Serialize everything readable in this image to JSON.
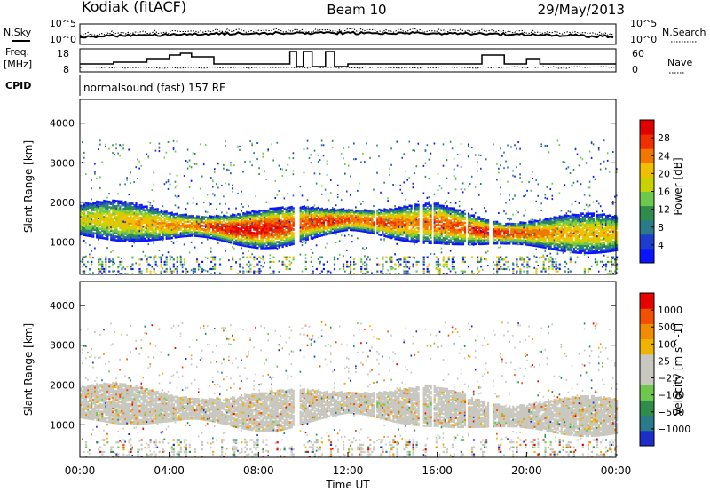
{
  "header": {
    "station": "Kodiak (fitACF)",
    "beam": "Beam 10",
    "date": "29/May/2013"
  },
  "labels": {
    "nsky": "N.Sky",
    "nsearch": "N.Search",
    "freq_line1": "Freq.",
    "freq_line2": "[MHz]",
    "nave": "Nave",
    "cpid": "CPID",
    "cpid_value": "normalsound (fast) 157 RF",
    "sky_tick_top": "10^5",
    "sky_tick_bottom": "10^0",
    "search_tick_top": "10^5",
    "search_tick_bottom": "10^0",
    "freq_tick_top": "18",
    "freq_tick_bottom": "8",
    "nave_tick_top": "60",
    "nave_tick_bottom": "0"
  },
  "colors": {
    "power": [
      "#0a14ff",
      "#1e3ccd",
      "#2a7a8a",
      "#2f8c4a",
      "#6ec84e",
      "#c8d200",
      "#f0c000",
      "#f07800",
      "#f03000",
      "#e00000"
    ],
    "velocity": [
      "#e60000",
      "#f05000",
      "#f08c00",
      "#f0b400",
      "#c8c8c0",
      "#c8c8c0",
      "#6ec84e",
      "#2f8c4a",
      "#2a7a8a",
      "#1e2cc8"
    ]
  },
  "chart_data": [
    {
      "type": "heatmap",
      "name": "power",
      "xlabel": "",
      "ylabel": "Slant Range [km]",
      "xlim": [
        0,
        24
      ],
      "ylim": [
        180,
        4600
      ],
      "yticks": [
        1000,
        2000,
        3000,
        4000
      ],
      "colorbar": {
        "label": "Power [dB]",
        "ticks": [
          4,
          8,
          12,
          16,
          20,
          24,
          28
        ],
        "range": [
          0,
          30
        ]
      },
      "echo_band": {
        "x": [
          0,
          1,
          2,
          3,
          4,
          5,
          6,
          7,
          8,
          9,
          10,
          11,
          12,
          13,
          14,
          15,
          16,
          17,
          18,
          19,
          20,
          21,
          22,
          23,
          24
        ],
        "center_range_km": [
          1600,
          1600,
          1550,
          1500,
          1450,
          1450,
          1400,
          1350,
          1350,
          1400,
          1500,
          1550,
          1600,
          1550,
          1500,
          1500,
          1500,
          1400,
          1300,
          1250,
          1250,
          1250,
          1250,
          1250,
          1250
        ],
        "peak_power_db": [
          18,
          18,
          20,
          20,
          22,
          22,
          26,
          28,
          28,
          26,
          24,
          26,
          24,
          24,
          24,
          22,
          24,
          24,
          26,
          26,
          24,
          22,
          20,
          20,
          20
        ]
      }
    },
    {
      "type": "heatmap",
      "name": "velocity",
      "xlabel": "Time UT",
      "ylabel": "Slant Range [km]",
      "xlim": [
        0,
        24
      ],
      "ylim": [
        180,
        4600
      ],
      "xticks": [
        "00:00",
        "04:00",
        "08:00",
        "12:00",
        "16:00",
        "20:00",
        "00:00"
      ],
      "yticks": [
        1000,
        2000,
        3000,
        4000
      ],
      "colorbar": {
        "label": "Velocity [m s^-1]",
        "ticks": [
          "1000",
          "500",
          "100",
          "25",
          "−25",
          "−100",
          "−500",
          "−1000"
        ]
      },
      "dominant_velocity": "ground scatter (~0 m/s)"
    }
  ]
}
